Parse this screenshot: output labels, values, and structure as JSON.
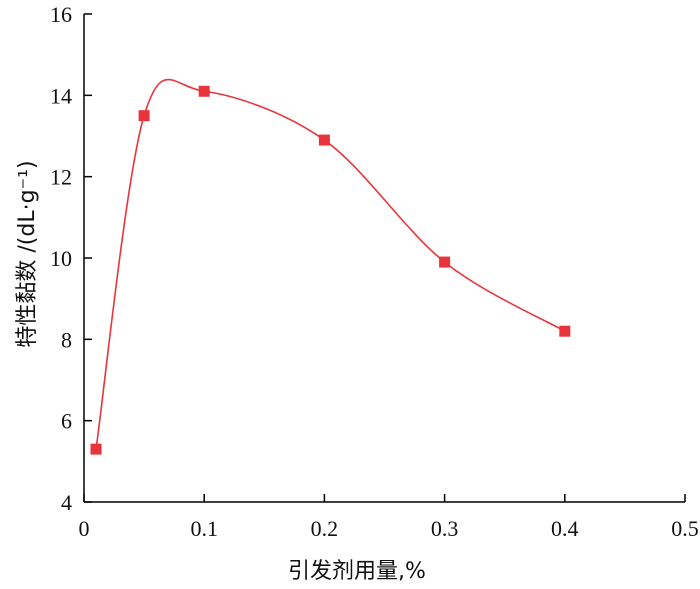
{
  "chart_data": {
    "type": "line",
    "title": "",
    "xlabel": "引发剂用量,%",
    "ylabel": "特性黏数 /(dL·g⁻¹)",
    "xlim": [
      0,
      0.5
    ],
    "ylim": [
      4,
      16
    ],
    "xticks": [
      "0",
      "0.1",
      "0.2",
      "0.3",
      "0.4",
      "0.5"
    ],
    "yticks": [
      "4",
      "6",
      "8",
      "10",
      "12",
      "14",
      "16"
    ],
    "grid": false,
    "series": [
      {
        "x": [
          0.01,
          0.05,
          0.1,
          0.2,
          0.3,
          0.4
        ],
        "y": [
          5.3,
          13.5,
          14.1,
          12.9,
          9.9,
          8.2
        ],
        "color": "#e8353b",
        "marker": "square",
        "smooth": true
      }
    ]
  }
}
